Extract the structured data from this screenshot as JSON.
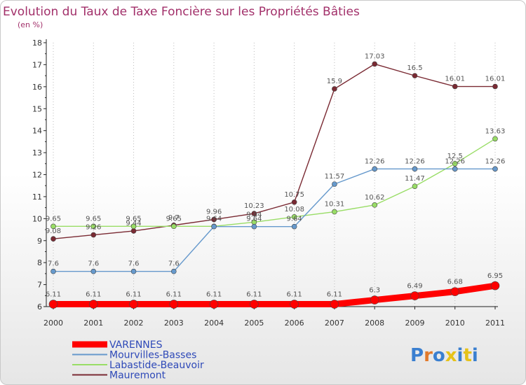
{
  "chart_data": {
    "type": "line",
    "title": "Evolution du Taux de Taxe Foncière sur les Propriétés Bâties",
    "subtitle": "(en %)",
    "xlabel": "",
    "ylabel": "",
    "x": [
      "2000",
      "2001",
      "2002",
      "2003",
      "2004",
      "2005",
      "2006",
      "2007",
      "2008",
      "2009",
      "2010",
      "2011"
    ],
    "ylim": [
      6,
      18
    ],
    "yticks": [
      "6",
      "7",
      "8",
      "9",
      "10",
      "11",
      "12",
      "13",
      "14",
      "15",
      "16",
      "17",
      "18"
    ],
    "grid": "vertical-dotted",
    "legend_position": "bottom-left",
    "series": [
      {
        "name": "VARENNES",
        "color": "#ff0000",
        "values": [
          6.11,
          6.11,
          6.11,
          6.11,
          6.11,
          6.11,
          6.11,
          6.11,
          6.3,
          6.49,
          6.68,
          6.95
        ],
        "labels": [
          "6.11",
          "6.11",
          "6.11",
          "6.11",
          "6.11",
          "6.11",
          "6.11",
          "6.11",
          "6.3",
          "6.49",
          "6.68",
          "6.95"
        ]
      },
      {
        "name": "Mourvilles-Basses",
        "color": "#6699cc",
        "values": [
          7.6,
          7.6,
          7.6,
          7.6,
          9.64,
          9.64,
          9.64,
          11.57,
          12.26,
          12.26,
          12.26,
          12.26
        ],
        "labels": [
          "7.6",
          "7.6",
          "7.6",
          "7.6",
          "9.64",
          "9.64",
          "9.64",
          "11.57",
          "12.26",
          "12.26",
          "12.26",
          "12.26"
        ]
      },
      {
        "name": "Labastide-Beauvoir",
        "color": "#99dd66",
        "values": [
          9.65,
          9.65,
          9.65,
          9.65,
          9.65,
          9.84,
          10.08,
          10.31,
          10.62,
          11.47,
          12.5,
          13.63
        ],
        "labels": [
          "9.65",
          "9.65",
          "9.65",
          "9.65",
          "",
          "9.84",
          "10.08",
          "10.31",
          "10.62",
          "11.47",
          "12.5",
          "13.63"
        ]
      },
      {
        "name": "Mauremont",
        "color": "#7a2a33",
        "values": [
          9.08,
          9.26,
          9.44,
          9.7,
          9.96,
          10.23,
          10.75,
          15.9,
          17.03,
          16.5,
          16.01,
          16.01
        ],
        "labels": [
          "9.08",
          "9.26",
          "9.44",
          "9.7",
          "9.96",
          "10.23",
          "10.75",
          "15.9",
          "17.03",
          "16.5",
          "16.01",
          "16.01"
        ]
      }
    ]
  },
  "logo": {
    "text": "Proxiti",
    "letter_colors": [
      "#3a7fd0",
      "#e27a2b",
      "#3a7fd0",
      "#e6c21a",
      "#3a7fd0",
      "#e6c21a",
      "#3a7fd0"
    ]
  }
}
